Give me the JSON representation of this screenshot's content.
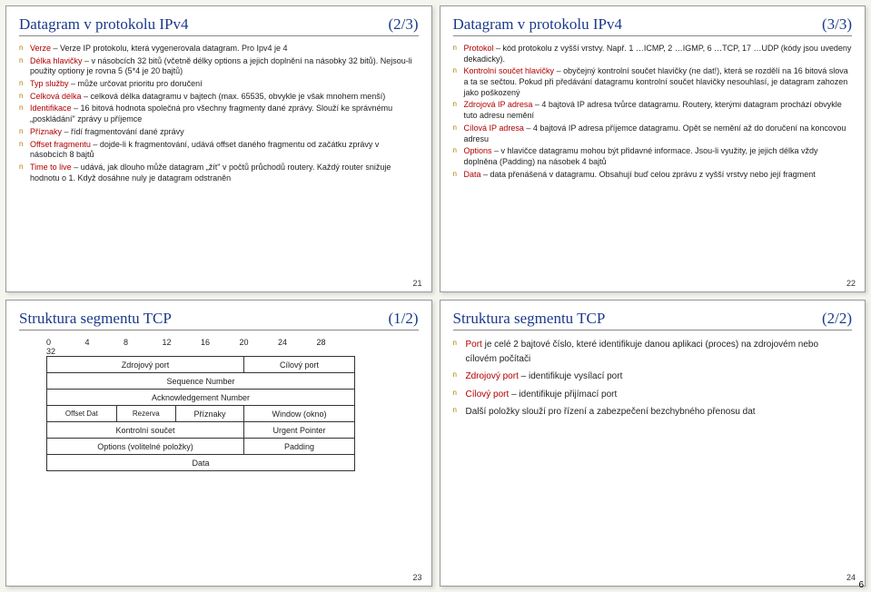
{
  "slide21": {
    "title": "Datagram v protokolu IPv4",
    "part": "(2/3)",
    "pagenum": "21",
    "items": [
      {
        "t": "Verze",
        "b": " – Verze IP protokolu, která vygenerovala datagram. Pro Ipv4 je 4"
      },
      {
        "t": "Délka hlavičky",
        "b": " – v násobcích 32 bitů (včetně délky options a jejich doplnění na násobky 32 bitů). Nejsou-li použity optiony je rovna 5 (5*4 je 20 bajtů)"
      },
      {
        "t": "Typ služby",
        "b": " – může určovat prioritu pro doručení"
      },
      {
        "t": "Celková délka",
        "b": " – celková délka datagramu v bajtech (max. 65535, obvykle je však mnohem menší)"
      },
      {
        "t": "Identifikace",
        "b": " – 16 bitová hodnota společná pro všechny fragmenty dané zprávy. Slouží ke správnému „poskládání\" zprávy u příjemce"
      },
      {
        "t": "Příznaky",
        "b": " – řídí fragmentování dané zprávy"
      },
      {
        "t": "Offset fragmentu",
        "b": " – dojde-li k fragmentování, udává offset daného fragmentu od začátku zprávy v násobcích 8 bajtů"
      },
      {
        "t": "Time to live",
        "b": " – udává, jak dlouho může datagram „žít\" v počtů průchodů routery. Každý router snižuje hodnotu o 1. Když dosáhne nuly je datagram odstraněn"
      }
    ]
  },
  "slide22": {
    "title": "Datagram v protokolu IPv4",
    "part": "(3/3)",
    "pagenum": "22",
    "items": [
      {
        "t": "Protokol",
        "b": " – kód protokolu z vyšší vrstvy. Např. 1 …ICMP, 2 …IGMP, 6 …TCP, 17 …UDP (kódy jsou uvedeny dekadicky)."
      },
      {
        "t": "Kontrolní součet hlavičky",
        "b": " – obyčejný kontrolní součet hlavičky (ne dat!), která se rozdělí na 16 bitová slova a ta se sečtou. Pokud při předávání datagramu kontrolní součet hlavičky nesouhlasí, je datagram zahozen jako poškozený"
      },
      {
        "t": "Zdrojová IP adresa",
        "b": " – 4 bajtová IP adresa tvůrce datagramu. Routery, kterými datagram prochází obvykle tuto adresu nemění"
      },
      {
        "t": "Cílová IP adresa",
        "b": " – 4 bajtová IP adresa příjemce datagramu. Opět se nemění až do doručení na koncovou adresu"
      },
      {
        "t": "Options",
        "b": " – v hlavičce datagramu mohou být přidavné informace. Jsou-li využity, je jejich délka vždy doplněna (Padding) na násobek 4 bajtů"
      },
      {
        "t": "Data",
        "b": " – data přenášená v datagramu. Obsahují buď celou zprávu z vyšší vrstvy nebo její fragment"
      }
    ]
  },
  "slide23": {
    "title": "Struktura segmentu TCP",
    "part": "(1/2)",
    "pagenum": "23",
    "bits": [
      "0",
      "4",
      "8",
      "12",
      "16",
      "20",
      "24",
      "28",
      "32"
    ],
    "rows": {
      "src_port": "Zdrojový port",
      "dst_port": "Cílový port",
      "seq": "Sequence Number",
      "ack": "Acknowledgement Number",
      "offset": "Offset Dat",
      "rsv": "Rezerva",
      "flags": "Příznaky",
      "win": "Window (okno)",
      "chk": "Kontrolní součet",
      "urg": "Urgent Pointer",
      "opt": "Options (volitelné položky)",
      "pad": "Padding",
      "data": "Data"
    }
  },
  "slide24": {
    "title": "Struktura segmentu TCP",
    "part": "(2/2)",
    "pagenum": "24",
    "items": [
      {
        "t": "Port",
        "b": " je celé 2 bajtové číslo, které identifikuje danou aplikaci (proces) na zdrojovém nebo cílovém počítači"
      },
      {
        "t": "Zdrojový port",
        "b": " – identifikuje vysílací port"
      },
      {
        "t": "Cílový port",
        "b": " – identifikuje přijímací port"
      },
      {
        "t": "",
        "b": "Další položky slouží pro řízení a zabezpečení bezchybného přenosu dat"
      }
    ]
  },
  "sheetnum": "6"
}
